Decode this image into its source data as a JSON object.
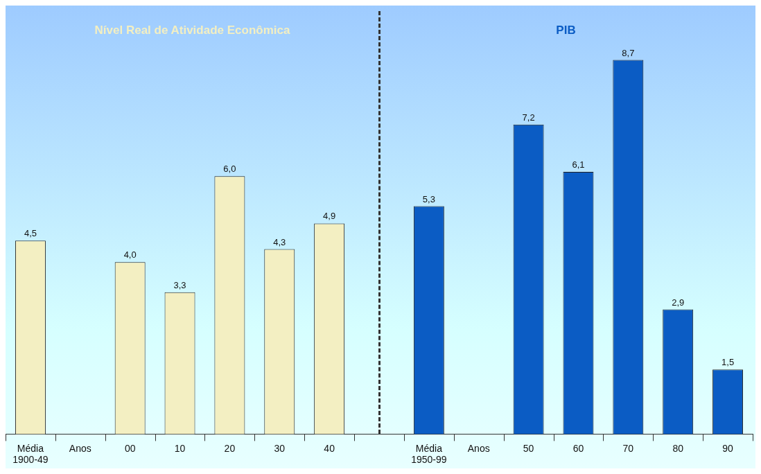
{
  "chart_data": {
    "type": "bar",
    "annotations": [
      "Nível Real de Atividade Econômica",
      "PIB"
    ],
    "categories": [
      "Média\n1900-49",
      "Anos",
      "00",
      "10",
      "20",
      "30",
      "40",
      null,
      "Média\n1950-99",
      "Anos",
      "50",
      "60",
      "70",
      "80",
      "90"
    ],
    "series": [
      {
        "color": "#f3efc2",
        "values": [
          4.5,
          null,
          4.0,
          3.3,
          6.0,
          4.3,
          4.9,
          null,
          null,
          null,
          null,
          null,
          null,
          null,
          null
        ],
        "value_labels": [
          "4,5",
          null,
          "4,0",
          "3,3",
          "6,0",
          "4,3",
          "4,9",
          null,
          null,
          null,
          null,
          null,
          null,
          null,
          null
        ]
      },
      {
        "color": "#0b5cc4",
        "values": [
          null,
          null,
          null,
          null,
          null,
          null,
          null,
          null,
          5.3,
          null,
          7.2,
          6.1,
          8.7,
          2.9,
          1.5
        ],
        "value_labels": [
          null,
          null,
          null,
          null,
          null,
          null,
          null,
          null,
          "5,3",
          null,
          "7,2",
          "6,1",
          "8,7",
          "2,9",
          "1,5"
        ]
      }
    ],
    "legend": false
  }
}
